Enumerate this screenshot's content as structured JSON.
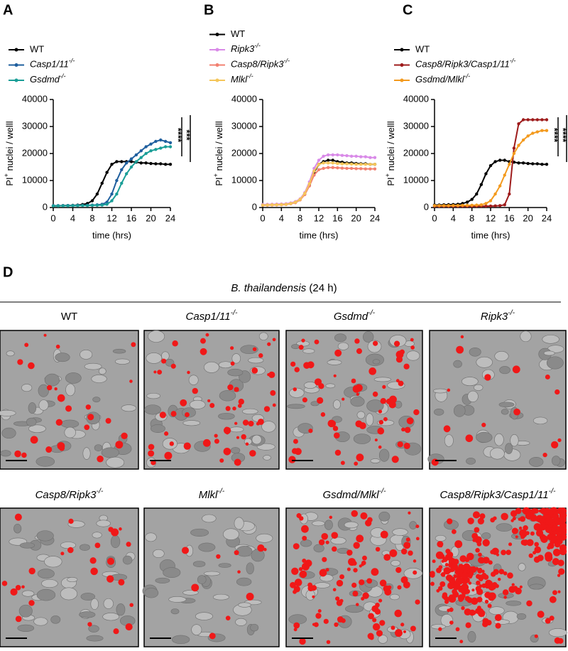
{
  "chart_data": [
    {
      "type": "line",
      "panel_label": "A",
      "y_label": "PI+ nuclei / welll",
      "x_label": "time (hrs)",
      "x": [
        0,
        1,
        2,
        3,
        4,
        5,
        6,
        7,
        8,
        9,
        10,
        11,
        12,
        13,
        14,
        15,
        16,
        17,
        18,
        19,
        20,
        21,
        22,
        23,
        24
      ],
      "xlim": [
        0,
        24
      ],
      "xticks": [
        0,
        4,
        8,
        12,
        16,
        20,
        24
      ],
      "ylim": [
        0,
        40000
      ],
      "yticks": [
        0,
        10000,
        20000,
        30000,
        40000
      ],
      "series": [
        {
          "name": "WT",
          "color": "#000000",
          "values": [
            600,
            650,
            700,
            750,
            800,
            900,
            1100,
            1500,
            2500,
            5000,
            9000,
            13000,
            16000,
            17000,
            17000,
            17000,
            17000,
            16800,
            16500,
            16500,
            16300,
            16200,
            16200,
            16000,
            16000
          ]
        },
        {
          "name": "Casp1/11-/-",
          "color": "#1f5f9e",
          "values": [
            700,
            700,
            700,
            750,
            750,
            800,
            800,
            850,
            900,
            1000,
            1200,
            2000,
            5000,
            10000,
            14000,
            16500,
            18000,
            19500,
            21000,
            22500,
            23500,
            24500,
            25000,
            24500,
            24000
          ]
        },
        {
          "name": "Gsdmd-/-",
          "color": "#1a9e97",
          "values": [
            600,
            600,
            650,
            650,
            700,
            700,
            750,
            750,
            800,
            850,
            900,
            1200,
            2500,
            5000,
            9000,
            12500,
            15000,
            17000,
            18500,
            20000,
            21000,
            21500,
            22000,
            22500,
            22500
          ]
        }
      ],
      "annotations": [
        "****",
        "***"
      ]
    },
    {
      "type": "line",
      "panel_label": "B",
      "y_label": "PI+ nuclei / welll",
      "x_label": "time (hrs)",
      "x": [
        0,
        1,
        2,
        3,
        4,
        5,
        6,
        7,
        8,
        9,
        10,
        11,
        12,
        13,
        14,
        15,
        16,
        17,
        18,
        19,
        20,
        21,
        22,
        23,
        24
      ],
      "xlim": [
        0,
        24
      ],
      "xticks": [
        0,
        4,
        8,
        12,
        16,
        20,
        24
      ],
      "ylim": [
        0,
        40000
      ],
      "yticks": [
        0,
        10000,
        20000,
        30000,
        40000
      ],
      "series": [
        {
          "name": "WT",
          "color": "#000000",
          "values": [
            900,
            950,
            1000,
            1050,
            1100,
            1200,
            1500,
            2000,
            3000,
            5000,
            8500,
            13000,
            16000,
            17000,
            17500,
            17500,
            17000,
            16800,
            16500,
            16500,
            16300,
            16200,
            16200,
            16000,
            16000
          ]
        },
        {
          "name": "Ripk3-/-",
          "color": "#d98ae8",
          "values": [
            1100,
            1150,
            1200,
            1250,
            1300,
            1400,
            1700,
            2200,
            3200,
            5500,
            9500,
            14500,
            17500,
            19000,
            19500,
            19500,
            19500,
            19300,
            19200,
            19000,
            19000,
            18800,
            18800,
            18500,
            18500
          ]
        },
        {
          "name": "Casp8/Ripk3-/-",
          "color": "#f28070",
          "values": [
            800,
            850,
            900,
            950,
            1000,
            1100,
            1400,
            1800,
            2800,
            4800,
            8000,
            12000,
            14000,
            14500,
            14800,
            14800,
            14700,
            14600,
            14500,
            14500,
            14400,
            14400,
            14300,
            14300,
            14300
          ]
        },
        {
          "name": "Mlkl-/-",
          "color": "#f5c65a",
          "values": [
            900,
            950,
            1000,
            1050,
            1100,
            1200,
            1500,
            2000,
            3000,
            5200,
            8800,
            13500,
            16000,
            16500,
            16500,
            16500,
            16300,
            16200,
            16200,
            16100,
            16000,
            16000,
            16000,
            16000,
            16000
          ]
        }
      ]
    },
    {
      "type": "line",
      "panel_label": "C",
      "y_label": "PI+ nuclei / welll",
      "x_label": "time (hrs)",
      "x": [
        0,
        1,
        2,
        3,
        4,
        5,
        6,
        7,
        8,
        9,
        10,
        11,
        12,
        13,
        14,
        15,
        16,
        17,
        18,
        19,
        20,
        21,
        22,
        23,
        24
      ],
      "xlim": [
        0,
        24
      ],
      "xticks": [
        0,
        4,
        8,
        12,
        16,
        20,
        24
      ],
      "ylim": [
        0,
        40000
      ],
      "yticks": [
        0,
        10000,
        20000,
        30000,
        40000
      ],
      "series": [
        {
          "name": "WT",
          "color": "#000000",
          "values": [
            900,
            950,
            1000,
            1050,
            1100,
            1200,
            1500,
            2000,
            3000,
            5000,
            8500,
            12500,
            15500,
            17000,
            17500,
            17500,
            17000,
            16800,
            16500,
            16500,
            16300,
            16200,
            16200,
            16000,
            16000
          ]
        },
        {
          "name": "Casp8/Ripk3/Casp1/11-/-",
          "color": "#9e1b1b",
          "values": [
            500,
            500,
            500,
            500,
            500,
            500,
            500,
            500,
            500,
            500,
            500,
            500,
            550,
            600,
            700,
            1000,
            5000,
            22000,
            31000,
            32500,
            32500,
            32500,
            32500,
            32500,
            32500
          ]
        },
        {
          "name": "Gsdmd/Mlkl-/-",
          "color": "#f39a1e",
          "values": [
            700,
            700,
            700,
            700,
            750,
            750,
            800,
            800,
            850,
            900,
            1000,
            1500,
            2500,
            5000,
            8000,
            12000,
            16000,
            20000,
            23000,
            25000,
            26500,
            27500,
            28000,
            28500,
            28500
          ]
        }
      ],
      "annotations": [
        "****",
        "****"
      ]
    }
  ],
  "panel_d": {
    "panel_label": "D",
    "title": "B. thailandensis (24 h)",
    "tiles": [
      "WT",
      "Casp1/11-/-",
      "Gsdmd-/-",
      "Ripk3-/-",
      "Casp8/Ripk3-/-",
      "Mlkl-/-",
      "Gsdmd/Mlkl-/-",
      "Casp8/Ripk3/Casp1/11-/-"
    ]
  }
}
